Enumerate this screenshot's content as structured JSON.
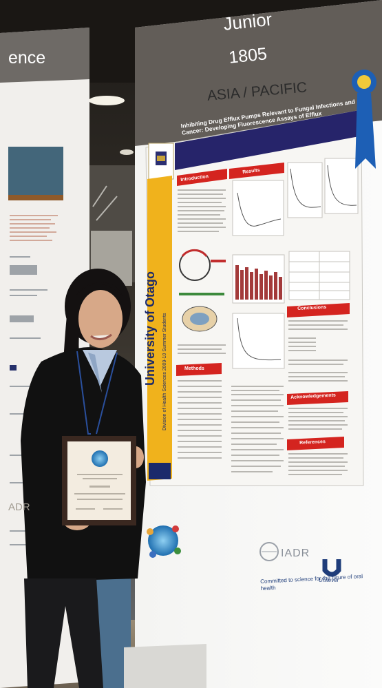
{
  "booth": {
    "category": "Junior",
    "poster_number": "1805",
    "region": "ASIA / PACIFIC",
    "neighbor_fragment": "ence",
    "neighbor_logo_fragment": "ADR"
  },
  "poster": {
    "title": "Inhibiting Drug Efflux Pumps Relevant to Fungal Infections and Cancer: Developing Fluorescence Assays of Efflux",
    "university": "University of Otago",
    "division": "Division of Health Sciences 2009-10 Summer Students",
    "sections": [
      "Introduction",
      "Results",
      "Methods",
      "Conclusions",
      "Acknowledgements",
      "References"
    ]
  },
  "sponsors": {
    "iadr": "IADR",
    "unilever": "Unilever",
    "slogan": "Committed to science for the future of oral health"
  },
  "colors": {
    "banner": "#5f5a55",
    "poster_red": "#d4241f",
    "poster_navy": "#26246a",
    "otago_gold": "#f0b21c",
    "ribbon_blue": "#1d5fb5"
  }
}
